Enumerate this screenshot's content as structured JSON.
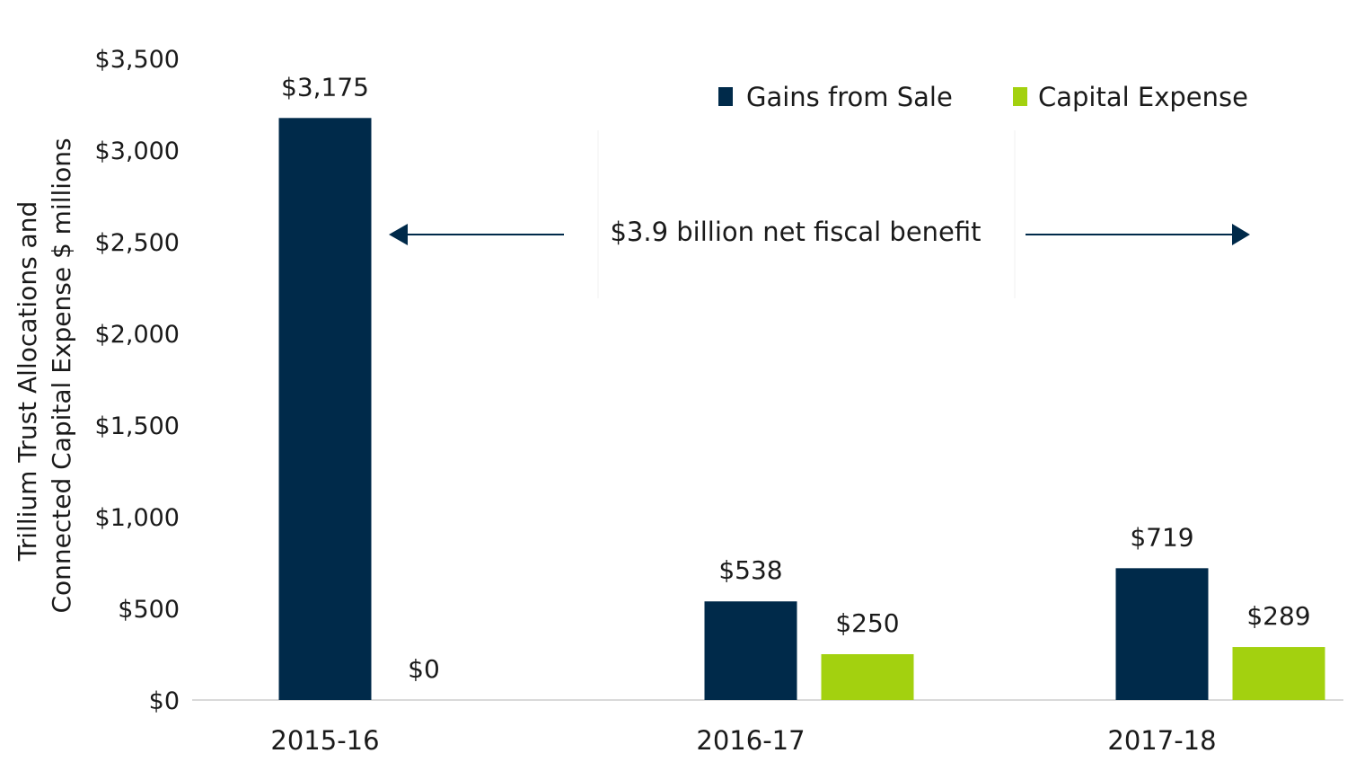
{
  "chart_data": {
    "type": "bar",
    "title": "",
    "xlabel": "",
    "ylabel_lines": [
      "Trillium Trust Allocations and",
      "Connected Capital Expense $ millions"
    ],
    "categories": [
      "2015-16",
      "2016-17",
      "2017-18"
    ],
    "series": [
      {
        "name": "Gains from Sale",
        "color": "#002a4a",
        "values": [
          3175,
          538,
          719
        ],
        "labels": [
          "$3,175",
          "$538",
          "$719"
        ]
      },
      {
        "name": "Capital Expense",
        "color": "#a3d10f",
        "values": [
          0,
          250,
          289
        ],
        "labels": [
          "$0",
          "$250",
          "$289"
        ]
      }
    ],
    "ylim": [
      0,
      3500
    ],
    "yticks": [
      0,
      500,
      1000,
      1500,
      2000,
      2500,
      3000,
      3500
    ],
    "ytick_labels": [
      "$0",
      "$500",
      "$1,000",
      "$1,500",
      "$2,000",
      "$2,500",
      "$3,000",
      "$3,500"
    ],
    "grid": false,
    "legend_position": "top-right",
    "annotation": {
      "text": "$3.9 billion net fiscal benefit",
      "arrows": "left-and-right"
    },
    "axis_color": "#d9d9d9",
    "arrow_color": "#002a4a"
  }
}
